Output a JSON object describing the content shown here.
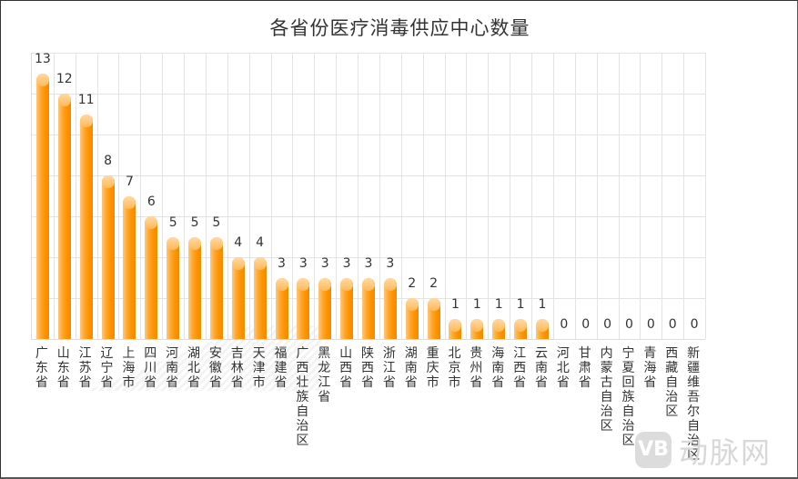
{
  "title": "各省份医疗消毒供应中心数量",
  "watermark": {
    "logo": "VB",
    "text": "动脉网"
  },
  "colors": {
    "bar": "#ff9800",
    "grid": "#e3e3e3",
    "text": "#333333"
  },
  "chart_data": {
    "type": "bar",
    "title": "各省份医疗消毒供应中心数量",
    "xlabel": "",
    "ylabel": "",
    "ylim": [
      0,
      14
    ],
    "grid": true,
    "legend": null,
    "data_labels": true,
    "categories": [
      "广东省",
      "山东省",
      "江苏省",
      "辽宁省",
      "上海市",
      "四川省",
      "河南省",
      "湖北省",
      "安徽省",
      "吉林省",
      "天津市",
      "福建省",
      "广西壮族自治区",
      "黑龙江省",
      "山西省",
      "陕西省",
      "浙江省",
      "湖南省",
      "重庆市",
      "北京市",
      "贵州省",
      "海南省",
      "江西省",
      "云南省",
      "河北省",
      "甘肃省",
      "内蒙古自治区",
      "宁夏回族自治区",
      "青海省",
      "西藏自治区",
      "新疆维吾尔自治区"
    ],
    "values": [
      13,
      12,
      11,
      8,
      7,
      6,
      5,
      5,
      5,
      4,
      4,
      3,
      3,
      3,
      3,
      3,
      3,
      2,
      2,
      1,
      1,
      1,
      1,
      1,
      0,
      0,
      0,
      0,
      0,
      0,
      0
    ]
  }
}
